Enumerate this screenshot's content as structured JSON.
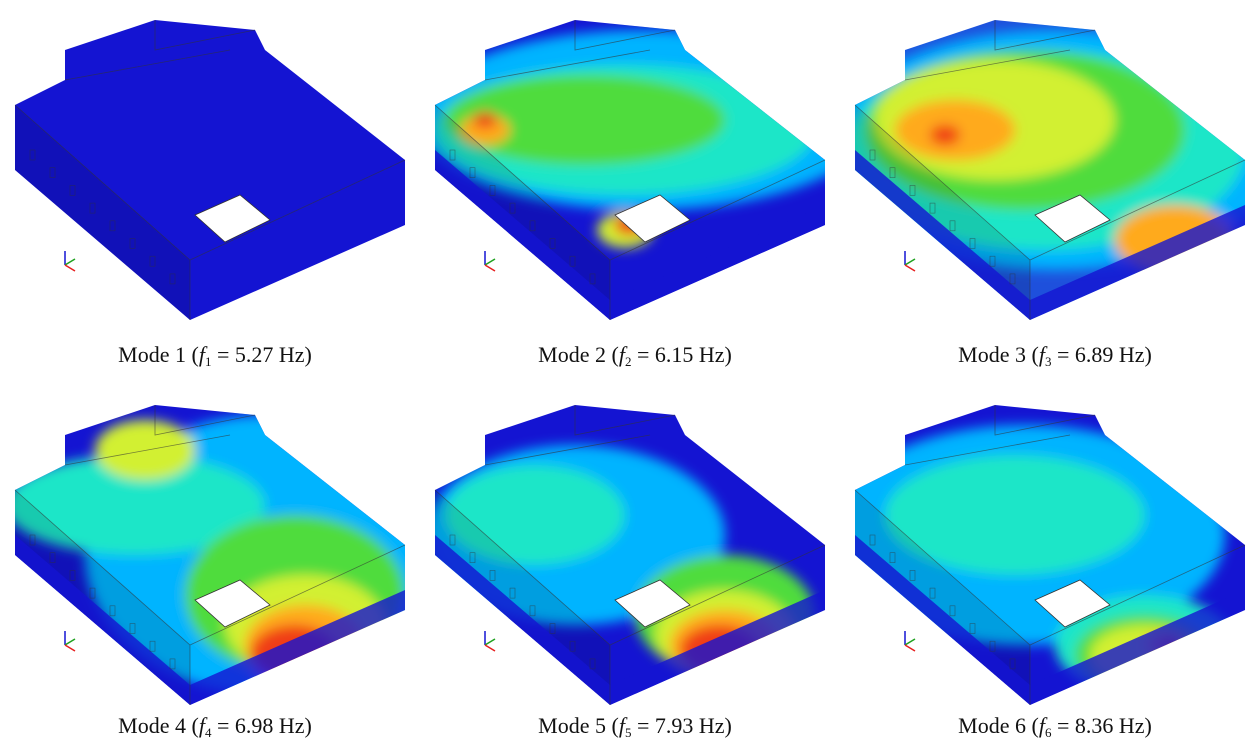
{
  "panels": [
    {
      "prefix": "Mode 1 (",
      "symbol": "f",
      "subscript": "1",
      "suffix": " = 5.27 Hz)"
    },
    {
      "prefix": "Mode 2 (",
      "symbol": "f",
      "subscript": "2",
      "suffix": " = 6.15 Hz)"
    },
    {
      "prefix": "Mode 3 (",
      "symbol": "f",
      "subscript": "3",
      "suffix": " = 6.89 Hz)"
    },
    {
      "prefix": "Mode 4 (",
      "symbol": "f",
      "subscript": "4",
      "suffix": " = 6.98 Hz)"
    },
    {
      "prefix": "Mode 5 (",
      "symbol": "f",
      "subscript": "5",
      "suffix": " = 7.93 Hz)"
    },
    {
      "prefix": "Mode 6 (",
      "symbol": "f",
      "subscript": "6",
      "suffix": " = 8.36 Hz)"
    }
  ]
}
